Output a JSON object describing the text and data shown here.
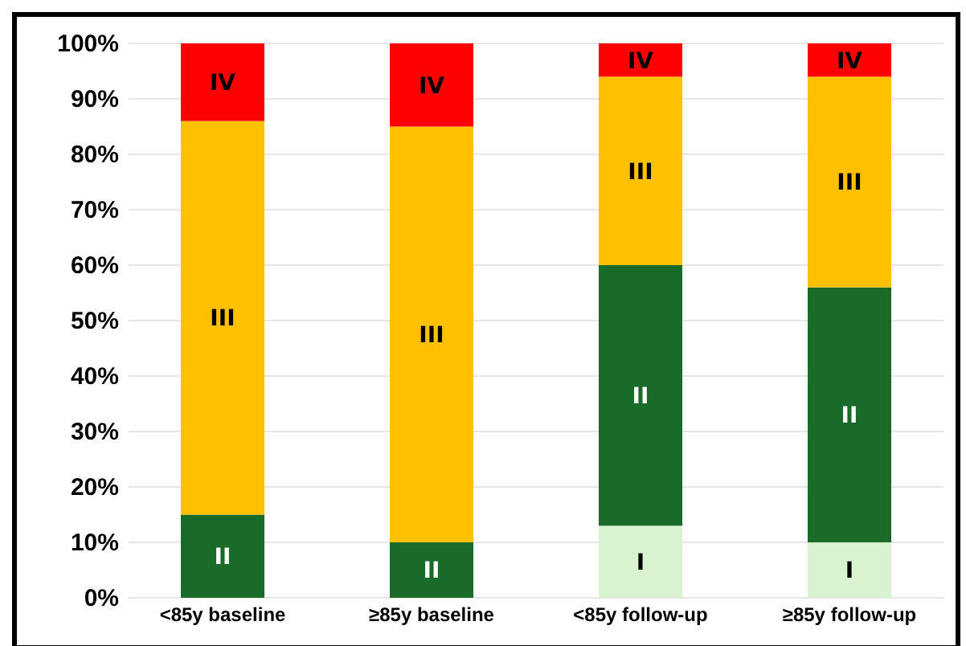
{
  "chart_data": {
    "type": "bar",
    "stacked": true,
    "categories": [
      "<85y baseline",
      "≥85y baseline",
      "<85y follow-up",
      "≥85y follow-up"
    ],
    "series": [
      {
        "name": "I",
        "color": "#d9f2d0",
        "values": [
          0,
          0,
          13,
          10
        ]
      },
      {
        "name": "II",
        "color": "#1a6b2a",
        "values": [
          15,
          10,
          47,
          46
        ]
      },
      {
        "name": "III",
        "color": "#ffc000",
        "values": [
          71,
          75,
          34,
          38
        ]
      },
      {
        "name": "IV",
        "color": "#ff0000",
        "values": [
          14,
          15,
          6,
          6
        ]
      }
    ],
    "ylim": [
      0,
      100
    ],
    "yticks": [
      {
        "value": 0,
        "label": "0%"
      },
      {
        "value": 10,
        "label": "10%"
      },
      {
        "value": 20,
        "label": "20%"
      },
      {
        "value": 30,
        "label": "30%"
      },
      {
        "value": 40,
        "label": "40%"
      },
      {
        "value": 50,
        "label": "50%"
      },
      {
        "value": 60,
        "label": "60%"
      },
      {
        "value": 70,
        "label": "70%"
      },
      {
        "value": 80,
        "label": "80%"
      },
      {
        "value": 90,
        "label": "90%"
      },
      {
        "value": 100,
        "label": "100%"
      }
    ],
    "grid": "y",
    "legend": false
  }
}
